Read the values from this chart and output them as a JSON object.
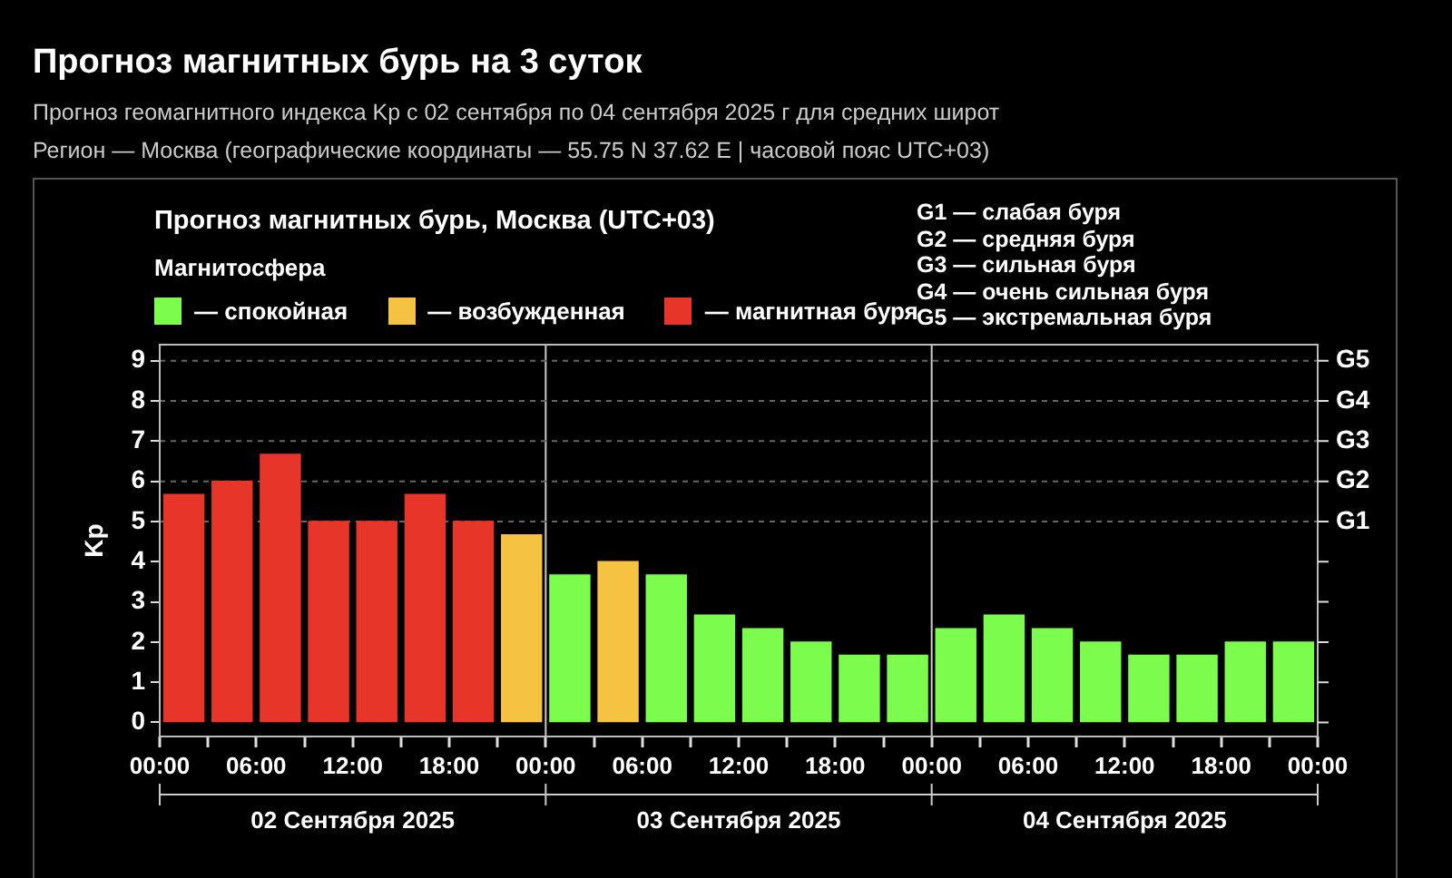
{
  "chart_data": {
    "type": "bar",
    "title": "Прогноз магнитных бурь на 3 суток",
    "subtitle": "Прогноз геомагнитного индекса Kp с 02 сентября по 04 сентября 2025 г для средних широт",
    "annotations": [
      "Регион — Москва (географические координаты — 55.75 N 37.62 E | часовой пояс UTC+03)",
      "Прогноз магнитных бурь, Москва (UTC+03)",
      "G1 — слабая буря",
      "G2 — средняя буря",
      "G3 — сильная буря",
      "G4 — очень сильная буря",
      "G5 — экстремальная буря",
      "02 Сентября 2025",
      "03 Сентября 2025",
      "04 Сентября 2025"
    ],
    "ylabel": "Kp",
    "legend_title": "Магнитосфера",
    "legend": "top left",
    "x": [
      "2025-09-02T01:30",
      "2025-09-02T04:30",
      "2025-09-02T07:30",
      "2025-09-02T10:30",
      "2025-09-02T13:30",
      "2025-09-02T16:30",
      "2025-09-02T19:30",
      "2025-09-02T22:30",
      "2025-09-03T01:30",
      "2025-09-03T04:30",
      "2025-09-03T07:30",
      "2025-09-03T10:30",
      "2025-09-03T13:30",
      "2025-09-03T16:30",
      "2025-09-03T19:30",
      "2025-09-03T22:30",
      "2025-09-04T01:30",
      "2025-09-04T04:30",
      "2025-09-04T07:30",
      "2025-09-04T10:30",
      "2025-09-04T13:30",
      "2025-09-04T16:30",
      "2025-09-04T19:30",
      "2025-09-04T22:30"
    ],
    "series": [
      {
        "name": "— спокойная",
        "color": "#7cfc4c",
        "values": [
          null,
          null,
          null,
          null,
          null,
          null,
          null,
          null,
          3.67,
          null,
          3.67,
          2.67,
          2.33,
          2,
          1.67,
          1.67,
          2.33,
          2.67,
          2.33,
          2,
          1.67,
          1.67,
          2,
          2
        ]
      },
      {
        "name": "— возбужденная",
        "color": "#f5c242",
        "values": [
          null,
          null,
          null,
          null,
          null,
          null,
          null,
          4.67,
          null,
          4,
          null,
          null,
          null,
          null,
          null,
          null,
          null,
          null,
          null,
          null,
          null,
          null,
          null,
          null
        ]
      },
      {
        "name": "— магнитная буря",
        "color": "#e8352a",
        "values": [
          5.67,
          6,
          6.67,
          5,
          5,
          5.67,
          5,
          null,
          null,
          null,
          null,
          null,
          null,
          null,
          null,
          null,
          null,
          null,
          null,
          null,
          null,
          null,
          null,
          null
        ]
      }
    ],
    "xlim": [
      "2025-09-02T00:00",
      "2025-09-05T00:00"
    ],
    "xticks": [
      {
        "value": "2025-09-02T00:00",
        "label": "00:00"
      },
      {
        "value": "2025-09-02T03:00",
        "label": null
      },
      {
        "value": "2025-09-02T06:00",
        "label": "06:00"
      },
      {
        "value": "2025-09-02T09:00",
        "label": null
      },
      {
        "value": "2025-09-02T12:00",
        "label": "12:00"
      },
      {
        "value": "2025-09-02T15:00",
        "label": null
      },
      {
        "value": "2025-09-02T18:00",
        "label": "18:00"
      },
      {
        "value": "2025-09-02T21:00",
        "label": null
      },
      {
        "value": "2025-09-03T00:00",
        "label": "00:00"
      },
      {
        "value": "2025-09-03T03:00",
        "label": null
      },
      {
        "value": "2025-09-03T06:00",
        "label": "06:00"
      },
      {
        "value": "2025-09-03T09:00",
        "label": null
      },
      {
        "value": "2025-09-03T12:00",
        "label": "12:00"
      },
      {
        "value": "2025-09-03T15:00",
        "label": null
      },
      {
        "value": "2025-09-03T18:00",
        "label": "18:00"
      },
      {
        "value": "2025-09-03T21:00",
        "label": null
      },
      {
        "value": "2025-09-04T00:00",
        "label": "00:00"
      },
      {
        "value": "2025-09-04T03:00",
        "label": null
      },
      {
        "value": "2025-09-04T06:00",
        "label": "06:00"
      },
      {
        "value": "2025-09-04T09:00",
        "label": null
      },
      {
        "value": "2025-09-04T12:00",
        "label": "12:00"
      },
      {
        "value": "2025-09-04T15:00",
        "label": null
      },
      {
        "value": "2025-09-04T18:00",
        "label": "18:00"
      },
      {
        "value": "2025-09-04T21:00",
        "label": null
      },
      {
        "value": "2025-09-05T00:00",
        "label": "00:00"
      }
    ],
    "ylim": [
      -0.35,
      9.4
    ],
    "yticks": [
      0,
      1,
      2,
      3,
      4,
      5,
      6,
      7,
      8,
      9
    ],
    "ref_lines": [
      {
        "axis": "x",
        "value": "2025-09-03T00:00",
        "color": "#cccccc"
      },
      {
        "axis": "x",
        "value": "2025-09-04T00:00",
        "color": "#cccccc"
      },
      {
        "axis": "y",
        "value": 5,
        "label": "G1",
        "color": "#666666",
        "line_style": "dashed"
      },
      {
        "axis": "y",
        "value": 6,
        "label": "G2",
        "color": "#666666",
        "line_style": "dashed"
      },
      {
        "axis": "y",
        "value": 7,
        "label": "G3",
        "color": "#666666",
        "line_style": "dashed"
      },
      {
        "axis": "y",
        "value": 8,
        "label": "G4",
        "color": "#666666",
        "line_style": "dashed"
      },
      {
        "axis": "y",
        "value": 9,
        "label": "G5",
        "color": "#666666",
        "line_style": "dashed"
      }
    ]
  }
}
